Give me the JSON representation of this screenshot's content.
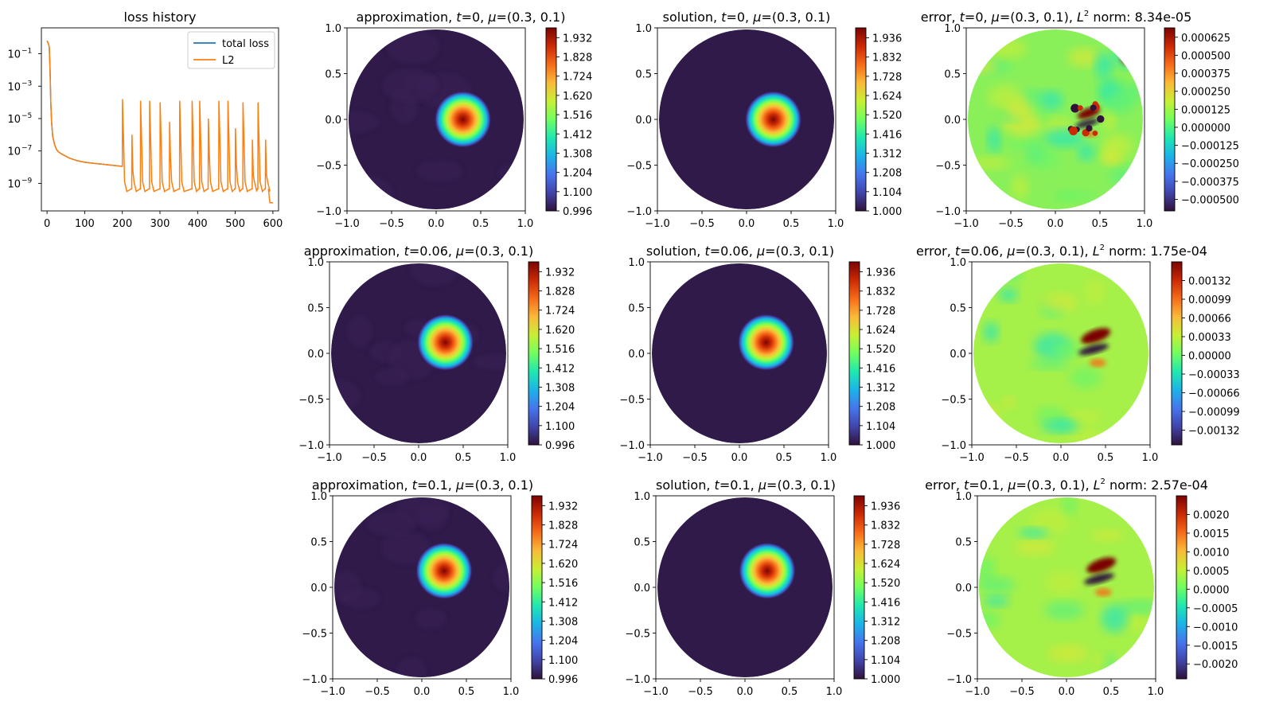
{
  "chart_data": [
    {
      "type": "line",
      "title": "loss history",
      "yscale": "log",
      "xlim": [
        -15,
        615
      ],
      "ylim_log10": [
        -10.7,
        0.6
      ],
      "x_ticks": [
        0,
        100,
        200,
        300,
        400,
        500,
        600
      ],
      "y_ticks": [
        {
          "exp": -1,
          "label": "10",
          "sup": "−1"
        },
        {
          "exp": -3,
          "label": "10",
          "sup": "−3"
        },
        {
          "exp": -5,
          "label": "10",
          "sup": "−5"
        },
        {
          "exp": -7,
          "label": "10",
          "sup": "−7"
        },
        {
          "exp": -9,
          "label": "10",
          "sup": "−9"
        }
      ],
      "legend": {
        "position": "top-right",
        "entries": [
          "total loss",
          "L2"
        ]
      },
      "series": [
        {
          "name": "total loss",
          "color": "#1f77b4",
          "x": [
            0,
            2,
            4,
            6,
            8,
            10,
            12,
            15,
            20,
            25,
            30,
            40,
            60,
            80,
            100,
            120,
            140,
            160,
            180,
            198
          ],
          "log10_y": [
            -0.2,
            -0.3,
            -0.4,
            -0.6,
            -2.0,
            -4.0,
            -5.2,
            -6.1,
            -6.6,
            -6.9,
            -7.05,
            -7.2,
            -7.45,
            -7.6,
            -7.7,
            -7.75,
            -7.8,
            -7.85,
            -7.9,
            -7.95
          ]
        },
        {
          "name": "L2",
          "color": "#ff7f0e",
          "x": [
            0,
            2,
            4,
            6,
            8,
            10,
            12,
            15,
            20,
            25,
            30,
            40,
            60,
            80,
            100,
            120,
            140,
            160,
            180,
            198
          ],
          "log10_y": [
            -0.2,
            -0.3,
            -0.4,
            -0.6,
            -2.0,
            -4.0,
            -5.2,
            -6.1,
            -6.6,
            -6.9,
            -7.05,
            -7.2,
            -7.45,
            -7.6,
            -7.7,
            -7.75,
            -7.8,
            -7.85,
            -7.9,
            -7.95
          ],
          "spike_x": [
            200,
            225,
            248,
            272,
            300,
            325,
            352,
            385,
            405,
            428,
            456,
            480,
            500,
            520,
            545,
            560,
            580
          ],
          "spike_peak_log10": [
            -3.8,
            -6.0,
            -3.9,
            -3.9,
            -4.0,
            -5.2,
            -3.9,
            -3.9,
            -3.9,
            -5.0,
            -3.9,
            -3.9,
            -5.6,
            -4.0,
            -6.3,
            -4.0,
            -6.3
          ],
          "floor_log10": -9.5,
          "end_log10": -10.2
        }
      ]
    },
    {
      "type": "heatmap",
      "field": "approximation",
      "title": "approximation, ",
      "t": "0",
      "mu": "(0.3, 0.1)",
      "xlim": [
        -1,
        1
      ],
      "ylim": [
        -1,
        1
      ],
      "center": [
        0.3,
        0.0
      ],
      "width": 0.1,
      "colorbar_ticks": [
        "1.932",
        "1.828",
        "1.724",
        "1.620",
        "1.516",
        "1.412",
        "1.308",
        "1.204",
        "1.100",
        "0.996"
      ],
      "colorbar_range": [
        0.996,
        1.985
      ],
      "colormap": "turbo"
    },
    {
      "type": "heatmap",
      "field": "solution",
      "title": "solution, ",
      "t": "0",
      "mu": "(0.3, 0.1)",
      "xlim": [
        -1,
        1
      ],
      "ylim": [
        -1,
        1
      ],
      "center": [
        0.3,
        0.0
      ],
      "width": 0.1,
      "colorbar_ticks": [
        "1.936",
        "1.832",
        "1.728",
        "1.624",
        "1.520",
        "1.416",
        "1.312",
        "1.208",
        "1.104",
        "1.000"
      ],
      "colorbar_range": [
        1.0,
        1.99
      ],
      "colormap": "turbo"
    },
    {
      "type": "heatmap",
      "field": "error",
      "title": "error, ",
      "t": "0",
      "mu": "(0.3, 0.1)",
      "norm_text": " norm: 8.34e-05",
      "xlim": [
        -1,
        1
      ],
      "ylim": [
        -1,
        1
      ],
      "colorbar_ticks": [
        "0.000625",
        "0.000500",
        "0.000375",
        "0.000250",
        "0.000125",
        "0.000000",
        "−0.000125",
        "−0.000250",
        "−0.000375",
        "−0.000500"
      ],
      "colorbar_range": [
        -0.00058,
        0.00069
      ],
      "colormap": "turbo"
    },
    {
      "type": "heatmap",
      "field": "approximation",
      "title": "approximation, ",
      "t": "0.06",
      "mu": "(0.3, 0.1)",
      "xlim": [
        -1,
        1
      ],
      "ylim": [
        -1,
        1
      ],
      "center": [
        0.3,
        0.12
      ],
      "width": 0.1,
      "colorbar_ticks": [
        "1.932",
        "1.828",
        "1.724",
        "1.620",
        "1.516",
        "1.412",
        "1.308",
        "1.204",
        "1.100",
        "0.996"
      ],
      "colorbar_range": [
        0.996,
        1.985
      ],
      "colormap": "turbo"
    },
    {
      "type": "heatmap",
      "field": "solution",
      "title": "solution, ",
      "t": "0.06",
      "mu": "(0.3, 0.1)",
      "xlim": [
        -1,
        1
      ],
      "ylim": [
        -1,
        1
      ],
      "center": [
        0.3,
        0.12
      ],
      "width": 0.1,
      "colorbar_ticks": [
        "1.936",
        "1.832",
        "1.728",
        "1.624",
        "1.520",
        "1.416",
        "1.312",
        "1.208",
        "1.104",
        "1.000"
      ],
      "colorbar_range": [
        1.0,
        1.99
      ],
      "colormap": "turbo"
    },
    {
      "type": "heatmap",
      "field": "error",
      "title": "error, ",
      "t": "0.06",
      "mu": "(0.3, 0.1)",
      "norm_text": " norm: 1.75e-04",
      "xlim": [
        -1,
        1
      ],
      "ylim": [
        -1,
        1
      ],
      "colorbar_ticks": [
        "0.00132",
        "0.00099",
        "0.00066",
        "0.00033",
        "0.00000",
        "−0.00033",
        "−0.00066",
        "−0.00099",
        "−0.00132"
      ],
      "colorbar_range": [
        -0.00158,
        0.00165
      ],
      "colormap": "turbo"
    },
    {
      "type": "heatmap",
      "field": "approximation",
      "title": "approximation, ",
      "t": "0.1",
      "mu": "(0.3, 0.1)",
      "xlim": [
        -1,
        1
      ],
      "ylim": [
        -1,
        1
      ],
      "center": [
        0.25,
        0.18
      ],
      "width": 0.1,
      "colorbar_ticks": [
        "1.932",
        "1.828",
        "1.724",
        "1.620",
        "1.516",
        "1.412",
        "1.308",
        "1.204",
        "1.100",
        "0.996"
      ],
      "colorbar_range": [
        0.996,
        1.985
      ],
      "colormap": "turbo"
    },
    {
      "type": "heatmap",
      "field": "solution",
      "title": "solution, ",
      "t": "0.1",
      "mu": "(0.3, 0.1)",
      "xlim": [
        -1,
        1
      ],
      "ylim": [
        -1,
        1
      ],
      "center": [
        0.25,
        0.18
      ],
      "width": 0.1,
      "colorbar_ticks": [
        "1.936",
        "1.832",
        "1.728",
        "1.624",
        "1.520",
        "1.416",
        "1.312",
        "1.208",
        "1.104",
        "1.000"
      ],
      "colorbar_range": [
        1.0,
        1.99
      ],
      "colormap": "turbo"
    },
    {
      "type": "heatmap",
      "field": "error",
      "title": "error, ",
      "t": "0.1",
      "mu": "(0.3, 0.1)",
      "norm_text": " norm: 2.57e-04",
      "xlim": [
        -1,
        1
      ],
      "ylim": [
        -1,
        1
      ],
      "colorbar_ticks": [
        "0.0020",
        "0.0015",
        "0.0010",
        "0.0005",
        "0.0000",
        "−0.0005",
        "−0.0010",
        "−0.0015",
        "−0.0020"
      ],
      "colorbar_range": [
        -0.0024,
        0.0025
      ],
      "colormap": "turbo"
    }
  ],
  "axis_tick_labels": [
    "−1.0",
    "−0.5",
    "0.0",
    "0.5",
    "1.0"
  ],
  "title_parts": {
    "t_sym": "t",
    "mu_sym": "μ",
    "eq": "=",
    "comma": ", ",
    "L": "L",
    "L_sup": "2"
  }
}
